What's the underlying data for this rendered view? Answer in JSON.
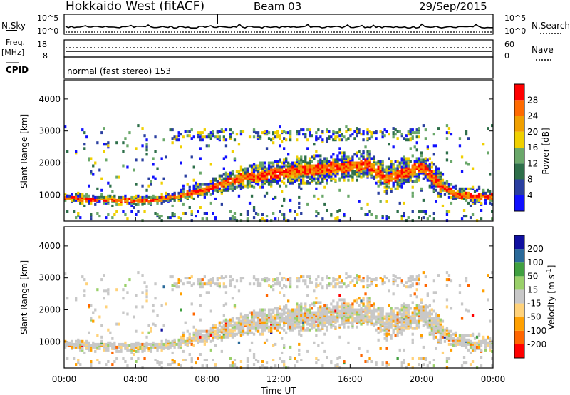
{
  "header": {
    "station": "Hokkaido West (fitACF)",
    "beam": "Beam 03",
    "date": "29/Sep/2015"
  },
  "status_panels": {
    "nsky_label": "N.Sky",
    "nsearch_label": "N.Search",
    "noise_ticks": [
      "10^5",
      "10^0"
    ],
    "freq_label": "Freq.",
    "freq_unit": "[MHz]",
    "freq_ticks": [
      "18",
      "8"
    ],
    "nave_ticks": [
      "60",
      "0"
    ],
    "nave_label": "Nave",
    "cpid_label": "CPID",
    "cpid_text": "normal (fast stereo) 153"
  },
  "colors": {
    "power_scale": [
      "#1010ff",
      "#2a3fa0",
      "#2e6f4a",
      "#6aa86a",
      "#f0d000",
      "#f0a000",
      "#ff6a00",
      "#ff0000"
    ],
    "velocity_scale": [
      "#ff0000",
      "#ff6600",
      "#ffa000",
      "#ffd27a",
      "#c8c8c8",
      "#9ad06a",
      "#40a040",
      "#2a6a9a",
      "#1010a0"
    ]
  },
  "chart_data": [
    {
      "type": "heatmap",
      "title": "",
      "xlabel": "",
      "ylabel": "Slant Range [km]",
      "x_ticks": [
        "00:00",
        "04:00",
        "08:00",
        "12:00",
        "16:00",
        "20:00",
        "00:00"
      ],
      "x_range_hours": [
        0,
        24
      ],
      "y_ticks": [
        1000,
        2000,
        3000,
        4000
      ],
      "ylim": [
        180,
        4600
      ],
      "colorbar": {
        "label": "Power [dB]",
        "ticks": [
          4,
          8,
          12,
          16,
          20,
          24,
          28
        ],
        "range": [
          0,
          32
        ]
      },
      "echo_band_center_km": {
        "hours": [
          0,
          2,
          4,
          5,
          6,
          7,
          8,
          9,
          10,
          11,
          12,
          13,
          14,
          15,
          16,
          17,
          18,
          19,
          20,
          21,
          22,
          23,
          24
        ],
        "values": [
          900,
          850,
          820,
          830,
          950,
          1050,
          1200,
          1400,
          1550,
          1600,
          1700,
          1750,
          1800,
          1850,
          1900,
          1950,
          1500,
          1700,
          1900,
          1300,
          1000,
          950,
          950
        ]
      }
    },
    {
      "type": "heatmap",
      "title": "",
      "xlabel": "Time UT",
      "ylabel": "Slant Range [km]",
      "x_ticks": [
        "00:00",
        "04:00",
        "08:00",
        "12:00",
        "16:00",
        "20:00",
        "00:00"
      ],
      "x_range_hours": [
        0,
        24
      ],
      "y_ticks": [
        1000,
        2000,
        3000,
        4000
      ],
      "ylim": [
        180,
        4600
      ],
      "colorbar": {
        "label": "Velocity [m s^-1]",
        "ticks": [
          200,
          100,
          50,
          15,
          -15,
          -50,
          -100,
          -200
        ],
        "range": [
          -250,
          250
        ]
      }
    }
  ]
}
